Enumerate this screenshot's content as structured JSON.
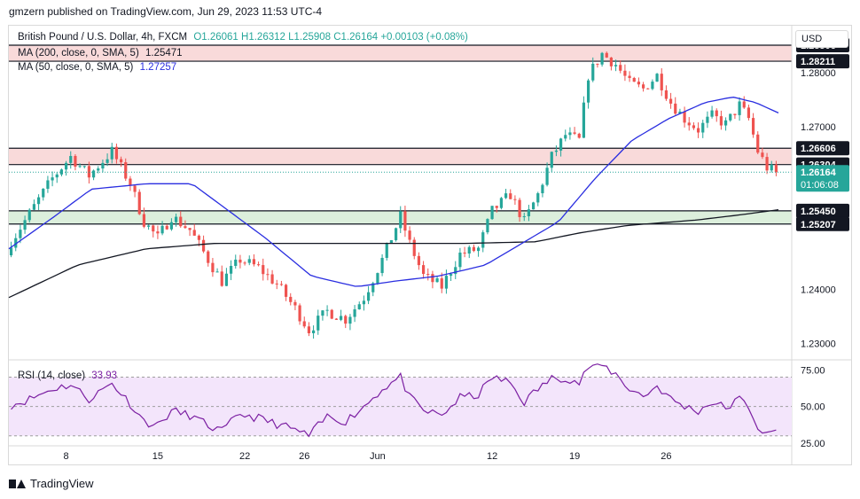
{
  "header": {
    "publisher_line": "gmzern published on TradingView.com, Jun 29, 2023 11:53 UTC-4"
  },
  "legend": {
    "symbol": "British Pound / U.S. Dollar, 4h, FXCM",
    "ohlc": "O1.26061 H1.26312 L1.25908 C1.26164 +0.00103 (+0.08%)",
    "ma200_label": "MA (200, close, 0, SMA, 5)",
    "ma200_value": "1.25471",
    "ma50_label": "MA (50, close, 0, SMA, 5)",
    "ma50_value": "1.27257",
    "rsi_label": "RSI (14, close)",
    "rsi_value": "33.93"
  },
  "price_scale": {
    "currency": "USD"
  },
  "colors": {
    "up": "#26a69a",
    "down": "#ef5350",
    "ma200": "#131722",
    "ma50": "#2a2ee0",
    "rsi_line": "#7b1fa2",
    "rsi_fill": "#f3e5fb",
    "resistance_zone": "#f9dada",
    "support_zone": "#dcefdc",
    "price_label": "#131722"
  },
  "footer": {
    "brand": "TradingView"
  },
  "chart_data": {
    "type": "candlestick",
    "instrument": "GBP/USD",
    "timeframe": "4h",
    "y_axis": {
      "range": [
        1.2275,
        1.2885
      ],
      "ticks": [
        "1.28000",
        "1.27000",
        "1.24000",
        "1.23000"
      ]
    },
    "x_axis": {
      "ticks": [
        "8",
        "15",
        "22",
        "26",
        "Jun",
        "12",
        "19",
        "26"
      ]
    },
    "horizontal_levels": [
      {
        "label": "1.28506",
        "value": 1.28506
      },
      {
        "label": "1.28211",
        "value": 1.28211
      },
      {
        "label": "1.26606",
        "value": 1.26606
      },
      {
        "label": "1.26304",
        "value": 1.26304
      },
      {
        "label": "1.25450",
        "value": 1.2545
      },
      {
        "label": "1.25207",
        "value": 1.25207
      }
    ],
    "zones": [
      {
        "type": "resistance",
        "from": 1.28211,
        "to": 1.28506
      },
      {
        "type": "resistance",
        "from": 1.26304,
        "to": 1.26606
      },
      {
        "type": "support",
        "from": 1.25207,
        "to": 1.2545
      }
    ],
    "last_price": {
      "label": "1.26164",
      "countdown": "01:06:08",
      "value": 1.26164
    },
    "close_path": [
      [
        0,
        1.2475
      ],
      [
        5,
        1.254
      ],
      [
        10,
        1.2605
      ],
      [
        14,
        1.2645
      ],
      [
        18,
        1.261
      ],
      [
        23,
        1.2655
      ],
      [
        27,
        1.2595
      ],
      [
        30,
        1.2525
      ],
      [
        33,
        1.2495
      ],
      [
        36,
        1.2535
      ],
      [
        40,
        1.251
      ],
      [
        44,
        1.2455
      ],
      [
        47,
        1.2415
      ],
      [
        51,
        1.2455
      ],
      [
        55,
        1.244
      ],
      [
        59,
        1.241
      ],
      [
        63,
        1.2365
      ],
      [
        66,
        1.2325
      ],
      [
        70,
        1.236
      ],
      [
        74,
        1.2345
      ],
      [
        78,
        1.2385
      ],
      [
        82,
        1.2455
      ],
      [
        86,
        1.2535
      ],
      [
        88,
        1.2485
      ],
      [
        91,
        1.2425
      ],
      [
        95,
        1.2405
      ],
      [
        99,
        1.2465
      ],
      [
        103,
        1.2475
      ],
      [
        106,
        1.2545
      ],
      [
        110,
        1.2575
      ],
      [
        113,
        1.2525
      ],
      [
        116,
        1.2575
      ],
      [
        119,
        1.2645
      ],
      [
        122,
        1.2685
      ],
      [
        125,
        1.2675
      ],
      [
        127,
        1.2795
      ],
      [
        130,
        1.2835
      ],
      [
        133,
        1.2815
      ],
      [
        136,
        1.278
      ],
      [
        139,
        1.277
      ],
      [
        142,
        1.2795
      ],
      [
        145,
        1.2745
      ],
      [
        148,
        1.2715
      ],
      [
        151,
        1.2695
      ],
      [
        154,
        1.272
      ],
      [
        157,
        1.2705
      ],
      [
        160,
        1.274
      ],
      [
        162,
        1.2715
      ],
      [
        164,
        1.2655
      ],
      [
        166,
        1.2625
      ],
      [
        168,
        1.26164
      ]
    ],
    "ma50_path": [
      [
        0,
        1.2475
      ],
      [
        10,
        1.2535
      ],
      [
        18,
        1.2585
      ],
      [
        30,
        1.2595
      ],
      [
        40,
        1.2595
      ],
      [
        48,
        1.2545
      ],
      [
        56,
        1.2495
      ],
      [
        66,
        1.2425
      ],
      [
        76,
        1.2405
      ],
      [
        84,
        1.2415
      ],
      [
        94,
        1.2425
      ],
      [
        104,
        1.2445
      ],
      [
        112,
        1.2485
      ],
      [
        120,
        1.2525
      ],
      [
        128,
        1.2605
      ],
      [
        136,
        1.2675
      ],
      [
        144,
        1.2715
      ],
      [
        152,
        1.2745
      ],
      [
        158,
        1.2755
      ],
      [
        163,
        1.2745
      ],
      [
        168,
        1.27257
      ]
    ],
    "ma200_path": [
      [
        0,
        1.2385
      ],
      [
        15,
        1.2445
      ],
      [
        30,
        1.2475
      ],
      [
        45,
        1.2485
      ],
      [
        60,
        1.2485
      ],
      [
        80,
        1.2485
      ],
      [
        100,
        1.2485
      ],
      [
        115,
        1.2488
      ],
      [
        125,
        1.2505
      ],
      [
        135,
        1.2518
      ],
      [
        150,
        1.2528
      ],
      [
        160,
        1.2538
      ],
      [
        168,
        1.25471
      ]
    ],
    "rsi": {
      "range": [
        25,
        80
      ],
      "ticks": [
        "75.00",
        "50.00",
        "25.00"
      ],
      "bands": [
        30,
        70
      ],
      "path": [
        [
          0,
          50
        ],
        [
          5,
          55
        ],
        [
          10,
          62
        ],
        [
          14,
          65
        ],
        [
          18,
          55
        ],
        [
          23,
          66
        ],
        [
          27,
          52
        ],
        [
          30,
          40
        ],
        [
          33,
          37
        ],
        [
          36,
          47
        ],
        [
          40,
          44
        ],
        [
          44,
          37
        ],
        [
          47,
          33
        ],
        [
          51,
          45
        ],
        [
          55,
          42
        ],
        [
          59,
          38
        ],
        [
          63,
          34
        ],
        [
          66,
          30
        ],
        [
          70,
          43
        ],
        [
          74,
          40
        ],
        [
          78,
          50
        ],
        [
          82,
          62
        ],
        [
          86,
          70
        ],
        [
          88,
          56
        ],
        [
          91,
          47
        ],
        [
          95,
          44
        ],
        [
          99,
          56
        ],
        [
          103,
          58
        ],
        [
          106,
          70
        ],
        [
          110,
          66
        ],
        [
          113,
          53
        ],
        [
          116,
          62
        ],
        [
          119,
          69
        ],
        [
          122,
          70
        ],
        [
          125,
          66
        ],
        [
          127,
          77
        ],
        [
          130,
          78
        ],
        [
          133,
          72
        ],
        [
          136,
          62
        ],
        [
          139,
          57
        ],
        [
          142,
          64
        ],
        [
          145,
          55
        ],
        [
          148,
          50
        ],
        [
          151,
          47
        ],
        [
          154,
          53
        ],
        [
          157,
          49
        ],
        [
          160,
          55
        ],
        [
          162,
          50
        ],
        [
          164,
          36
        ],
        [
          166,
          30
        ],
        [
          168,
          33.93
        ]
      ]
    },
    "n_candles": 168
  }
}
